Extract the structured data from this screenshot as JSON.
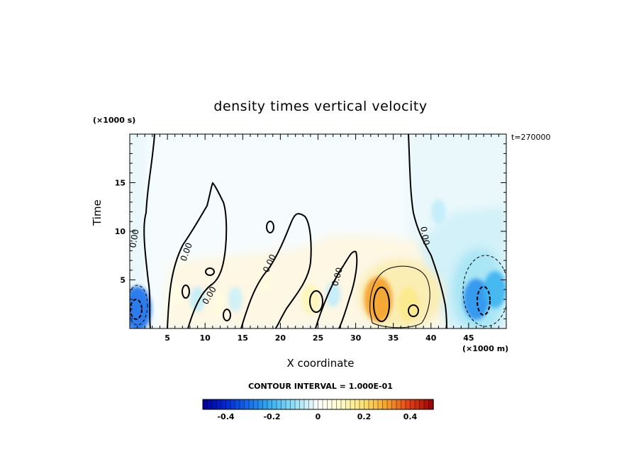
{
  "chart_data": {
    "type": "heatmap",
    "title": "density times vertical velocity",
    "xlabel": "X coordinate",
    "ylabel": "Time",
    "x_unit": "(×1000 m)",
    "y_unit": "(×1000 s)",
    "time_stamp": "t=270000",
    "xlim": [
      0,
      50
    ],
    "ylim": [
      0,
      20
    ],
    "x_ticks": [
      "5",
      "10",
      "15",
      "20",
      "25",
      "30",
      "35",
      "40",
      "45"
    ],
    "y_ticks": [
      "5",
      "10",
      "15"
    ],
    "contour_interval_text": "CONTOUR INTERVAL = 1.000E-01",
    "contour_label": "0.00",
    "colorbar": {
      "range": [
        -0.5,
        0.5
      ],
      "tick_labels": [
        "-0.4",
        "-0.2",
        "0",
        "0.2",
        "0.4"
      ],
      "tick_values": [
        -0.4,
        -0.2,
        0,
        0.2,
        0.4
      ]
    },
    "features": [
      {
        "x": 1.0,
        "y": 2.0,
        "value": -0.3
      },
      {
        "x": 6.0,
        "y": 3.5,
        "value": 0.05
      },
      {
        "x": 9.0,
        "y": 3.0,
        "value": -0.06
      },
      {
        "x": 12.0,
        "y": 2.5,
        "value": 0.06
      },
      {
        "x": 14.0,
        "y": 3.0,
        "value": -0.05
      },
      {
        "x": 18.0,
        "y": 5.0,
        "value": 0.06
      },
      {
        "x": 24.0,
        "y": 3.0,
        "value": 0.12
      },
      {
        "x": 27.0,
        "y": 3.5,
        "value": -0.06
      },
      {
        "x": 33.0,
        "y": 3.0,
        "value": 0.3
      },
      {
        "x": 37.0,
        "y": 2.5,
        "value": 0.17
      },
      {
        "x": 41.0,
        "y": 12.0,
        "value": -0.06
      },
      {
        "x": 46.0,
        "y": 3.0,
        "value": -0.25
      },
      {
        "x": 48.5,
        "y": 4.0,
        "value": -0.2
      }
    ]
  }
}
